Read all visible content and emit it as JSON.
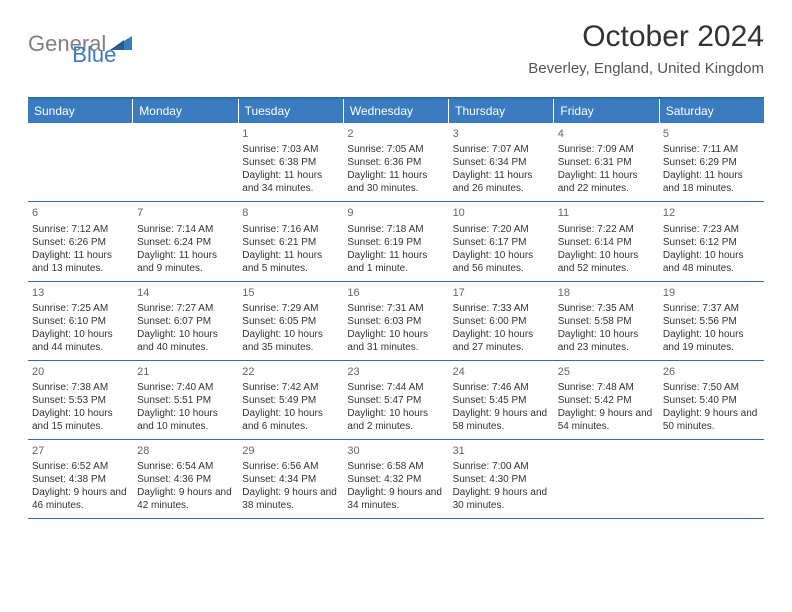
{
  "brand": {
    "text_general": "General",
    "text_blue": "Blue",
    "logo_color": "#3b7bbf",
    "gray_color": "#808080"
  },
  "header": {
    "month_title": "October 2024",
    "location": "Beverley, England, United Kingdom"
  },
  "colors": {
    "header_bg": "#3b7bbf",
    "header_fg": "#ffffff",
    "border": "#2f6fa8",
    "text": "#333333",
    "daynum": "#666666",
    "background": "#ffffff"
  },
  "weekdays": [
    "Sunday",
    "Monday",
    "Tuesday",
    "Wednesday",
    "Thursday",
    "Friday",
    "Saturday"
  ],
  "weeks": [
    [
      null,
      null,
      {
        "n": "1",
        "sunrise": "Sunrise: 7:03 AM",
        "sunset": "Sunset: 6:38 PM",
        "daylight": "Daylight: 11 hours and 34 minutes."
      },
      {
        "n": "2",
        "sunrise": "Sunrise: 7:05 AM",
        "sunset": "Sunset: 6:36 PM",
        "daylight": "Daylight: 11 hours and 30 minutes."
      },
      {
        "n": "3",
        "sunrise": "Sunrise: 7:07 AM",
        "sunset": "Sunset: 6:34 PM",
        "daylight": "Daylight: 11 hours and 26 minutes."
      },
      {
        "n": "4",
        "sunrise": "Sunrise: 7:09 AM",
        "sunset": "Sunset: 6:31 PM",
        "daylight": "Daylight: 11 hours and 22 minutes."
      },
      {
        "n": "5",
        "sunrise": "Sunrise: 7:11 AM",
        "sunset": "Sunset: 6:29 PM",
        "daylight": "Daylight: 11 hours and 18 minutes."
      }
    ],
    [
      {
        "n": "6",
        "sunrise": "Sunrise: 7:12 AM",
        "sunset": "Sunset: 6:26 PM",
        "daylight": "Daylight: 11 hours and 13 minutes."
      },
      {
        "n": "7",
        "sunrise": "Sunrise: 7:14 AM",
        "sunset": "Sunset: 6:24 PM",
        "daylight": "Daylight: 11 hours and 9 minutes."
      },
      {
        "n": "8",
        "sunrise": "Sunrise: 7:16 AM",
        "sunset": "Sunset: 6:21 PM",
        "daylight": "Daylight: 11 hours and 5 minutes."
      },
      {
        "n": "9",
        "sunrise": "Sunrise: 7:18 AM",
        "sunset": "Sunset: 6:19 PM",
        "daylight": "Daylight: 11 hours and 1 minute."
      },
      {
        "n": "10",
        "sunrise": "Sunrise: 7:20 AM",
        "sunset": "Sunset: 6:17 PM",
        "daylight": "Daylight: 10 hours and 56 minutes."
      },
      {
        "n": "11",
        "sunrise": "Sunrise: 7:22 AM",
        "sunset": "Sunset: 6:14 PM",
        "daylight": "Daylight: 10 hours and 52 minutes."
      },
      {
        "n": "12",
        "sunrise": "Sunrise: 7:23 AM",
        "sunset": "Sunset: 6:12 PM",
        "daylight": "Daylight: 10 hours and 48 minutes."
      }
    ],
    [
      {
        "n": "13",
        "sunrise": "Sunrise: 7:25 AM",
        "sunset": "Sunset: 6:10 PM",
        "daylight": "Daylight: 10 hours and 44 minutes."
      },
      {
        "n": "14",
        "sunrise": "Sunrise: 7:27 AM",
        "sunset": "Sunset: 6:07 PM",
        "daylight": "Daylight: 10 hours and 40 minutes."
      },
      {
        "n": "15",
        "sunrise": "Sunrise: 7:29 AM",
        "sunset": "Sunset: 6:05 PM",
        "daylight": "Daylight: 10 hours and 35 minutes."
      },
      {
        "n": "16",
        "sunrise": "Sunrise: 7:31 AM",
        "sunset": "Sunset: 6:03 PM",
        "daylight": "Daylight: 10 hours and 31 minutes."
      },
      {
        "n": "17",
        "sunrise": "Sunrise: 7:33 AM",
        "sunset": "Sunset: 6:00 PM",
        "daylight": "Daylight: 10 hours and 27 minutes."
      },
      {
        "n": "18",
        "sunrise": "Sunrise: 7:35 AM",
        "sunset": "Sunset: 5:58 PM",
        "daylight": "Daylight: 10 hours and 23 minutes."
      },
      {
        "n": "19",
        "sunrise": "Sunrise: 7:37 AM",
        "sunset": "Sunset: 5:56 PM",
        "daylight": "Daylight: 10 hours and 19 minutes."
      }
    ],
    [
      {
        "n": "20",
        "sunrise": "Sunrise: 7:38 AM",
        "sunset": "Sunset: 5:53 PM",
        "daylight": "Daylight: 10 hours and 15 minutes."
      },
      {
        "n": "21",
        "sunrise": "Sunrise: 7:40 AM",
        "sunset": "Sunset: 5:51 PM",
        "daylight": "Daylight: 10 hours and 10 minutes."
      },
      {
        "n": "22",
        "sunrise": "Sunrise: 7:42 AM",
        "sunset": "Sunset: 5:49 PM",
        "daylight": "Daylight: 10 hours and 6 minutes."
      },
      {
        "n": "23",
        "sunrise": "Sunrise: 7:44 AM",
        "sunset": "Sunset: 5:47 PM",
        "daylight": "Daylight: 10 hours and 2 minutes."
      },
      {
        "n": "24",
        "sunrise": "Sunrise: 7:46 AM",
        "sunset": "Sunset: 5:45 PM",
        "daylight": "Daylight: 9 hours and 58 minutes."
      },
      {
        "n": "25",
        "sunrise": "Sunrise: 7:48 AM",
        "sunset": "Sunset: 5:42 PM",
        "daylight": "Daylight: 9 hours and 54 minutes."
      },
      {
        "n": "26",
        "sunrise": "Sunrise: 7:50 AM",
        "sunset": "Sunset: 5:40 PM",
        "daylight": "Daylight: 9 hours and 50 minutes."
      }
    ],
    [
      {
        "n": "27",
        "sunrise": "Sunrise: 6:52 AM",
        "sunset": "Sunset: 4:38 PM",
        "daylight": "Daylight: 9 hours and 46 minutes."
      },
      {
        "n": "28",
        "sunrise": "Sunrise: 6:54 AM",
        "sunset": "Sunset: 4:36 PM",
        "daylight": "Daylight: 9 hours and 42 minutes."
      },
      {
        "n": "29",
        "sunrise": "Sunrise: 6:56 AM",
        "sunset": "Sunset: 4:34 PM",
        "daylight": "Daylight: 9 hours and 38 minutes."
      },
      {
        "n": "30",
        "sunrise": "Sunrise: 6:58 AM",
        "sunset": "Sunset: 4:32 PM",
        "daylight": "Daylight: 9 hours and 34 minutes."
      },
      {
        "n": "31",
        "sunrise": "Sunrise: 7:00 AM",
        "sunset": "Sunset: 4:30 PM",
        "daylight": "Daylight: 9 hours and 30 minutes."
      },
      null,
      null
    ]
  ]
}
